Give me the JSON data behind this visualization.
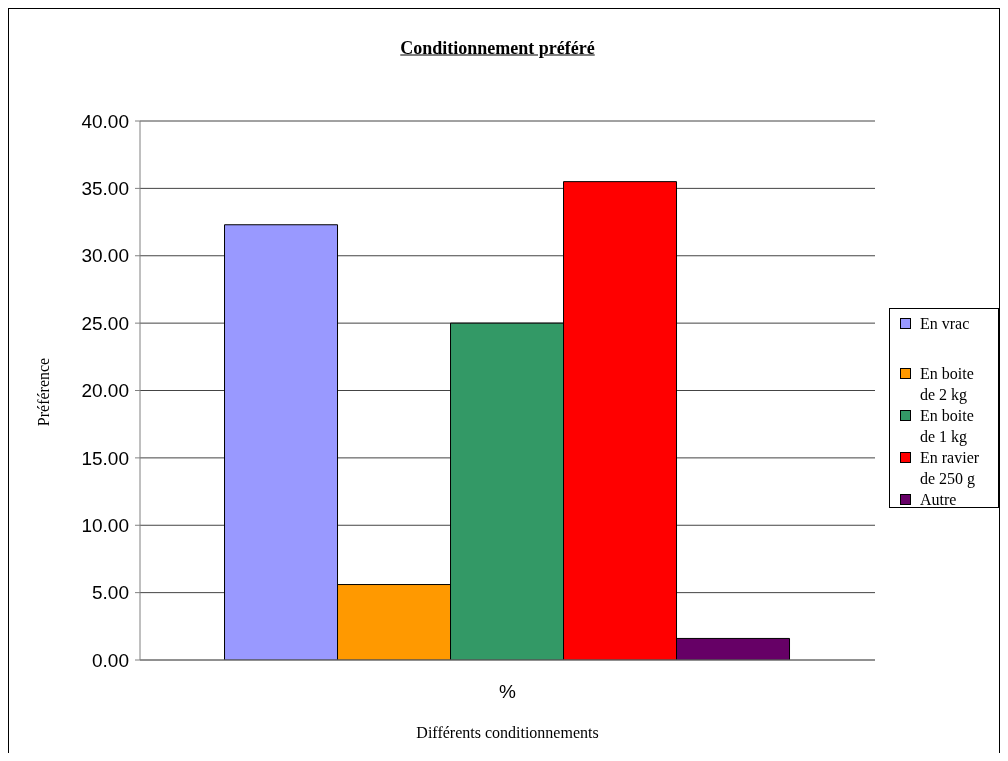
{
  "chart_data": {
    "type": "bar",
    "title": "Conditionnement préféré",
    "xlabel": "Différents conditionnements",
    "ylabel": "Préférence",
    "categories": [
      "%"
    ],
    "series": [
      {
        "name": "En vrac",
        "color": "#9999ff",
        "values": [
          32.3
        ]
      },
      {
        "name": "En boite de 2 kg",
        "color": "#ff9900",
        "values": [
          5.6
        ]
      },
      {
        "name": "En boite de 1 kg",
        "color": "#339966",
        "values": [
          25.0
        ]
      },
      {
        "name": "En ravier de 250 g",
        "color": "#ff0000",
        "values": [
          35.5
        ]
      },
      {
        "name": "Autre",
        "color": "#660066",
        "values": [
          1.6
        ]
      }
    ],
    "ylim": [
      0,
      40
    ],
    "yticks": [
      {
        "value": 0,
        "label": "0.00"
      },
      {
        "value": 5,
        "label": "5.00"
      },
      {
        "value": 10,
        "label": "10.00"
      },
      {
        "value": 15,
        "label": "15.00"
      },
      {
        "value": 20,
        "label": "20.00"
      },
      {
        "value": 25,
        "label": "25.00"
      },
      {
        "value": 30,
        "label": "30.00"
      },
      {
        "value": 35,
        "label": "35.00"
      },
      {
        "value": 40,
        "label": "40.00"
      }
    ],
    "grid": "y",
    "legend": "right"
  }
}
